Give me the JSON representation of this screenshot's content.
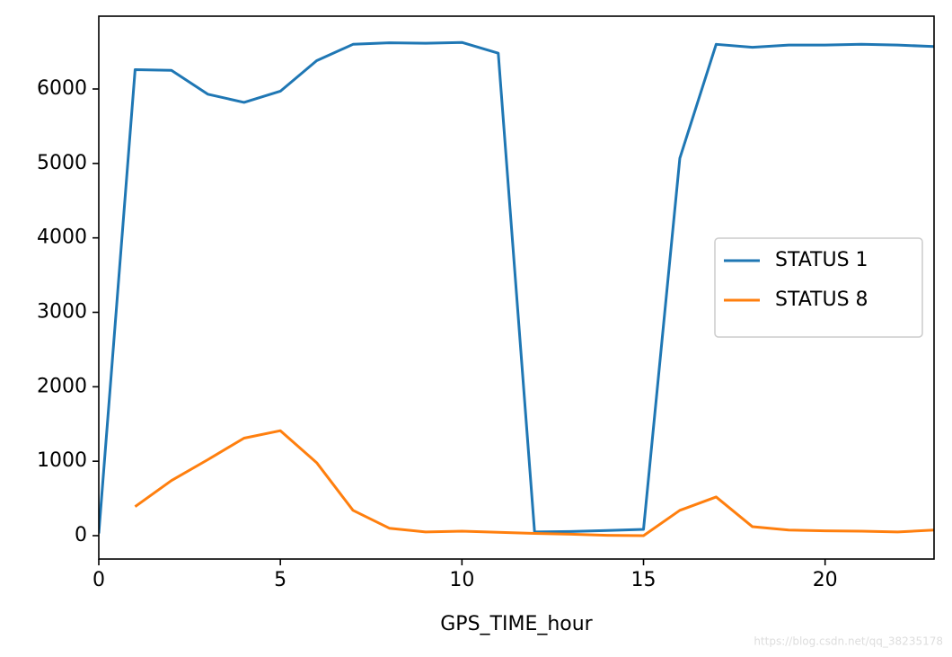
{
  "chart_data": {
    "type": "line",
    "x_label": "GPS_TIME_hour",
    "x": [
      0,
      1,
      2,
      3,
      4,
      5,
      6,
      7,
      8,
      9,
      10,
      11,
      12,
      13,
      14,
      15,
      16,
      17,
      18,
      19,
      20,
      21,
      22,
      23
    ],
    "series": [
      {
        "name": "STATUS 1",
        "color": "#1f77b4",
        "values": [
          30,
          6260,
          6250,
          5930,
          5820,
          5970,
          6380,
          6600,
          6620,
          6615,
          6625,
          6480,
          50,
          55,
          70,
          85,
          5070,
          6600,
          6560,
          6590,
          6590,
          6600,
          6590,
          6570
        ]
      },
      {
        "name": "STATUS 8",
        "color": "#ff7f0e",
        "values": [
          null,
          390,
          740,
          1020,
          1310,
          1410,
          980,
          340,
          100,
          50,
          60,
          45,
          30,
          20,
          5,
          0,
          340,
          520,
          120,
          75,
          65,
          60,
          50,
          75
        ]
      }
    ],
    "xlim": [
      0,
      23
    ],
    "xticks": [
      0,
      5,
      10,
      15,
      20
    ],
    "ylim": [
      -314,
      6978
    ],
    "yticks": [
      0,
      1000,
      2000,
      3000,
      4000,
      5000,
      6000
    ],
    "grid": false,
    "legend": "center right",
    "watermark": "https://blog.csdn.net/qq_38235178"
  }
}
